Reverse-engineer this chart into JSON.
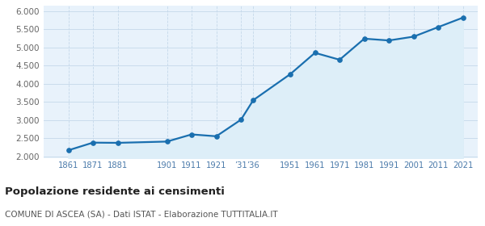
{
  "years": [
    1861,
    1871,
    1881,
    1901,
    1911,
    1921,
    1931,
    1936,
    1951,
    1961,
    1971,
    1981,
    1991,
    2001,
    2011,
    2021
  ],
  "population": [
    2168,
    2379,
    2373,
    2408,
    2605,
    2554,
    3010,
    3549,
    4265,
    4851,
    4661,
    5241,
    5192,
    5297,
    5560,
    5820
  ],
  "line_color": "#1a6faf",
  "fill_color": "#ddeef8",
  "marker_color": "#1a6faf",
  "bg_color": "#e8f2fb",
  "fig_color": "#ffffff",
  "yticks": [
    2000,
    2500,
    3000,
    3500,
    4000,
    4500,
    5000,
    5500,
    6000
  ],
  "ylim_min": 1950,
  "ylim_max": 6150,
  "xlim_min": 1851,
  "xlim_max": 2027,
  "title": "Popolazione residente ai censimenti",
  "subtitle": "COMUNE DI ASCEA (SA) - Dati ISTAT - Elaborazione TUTTITALIA.IT",
  "xtick_positions": [
    1861,
    1871,
    1881,
    1901,
    1911,
    1921,
    1931,
    1936,
    1951,
    1961,
    1971,
    1981,
    1991,
    2001,
    2011,
    2021
  ],
  "xtick_labels": [
    "1861",
    "1871",
    "1881",
    "1901",
    "1911",
    "1921",
    "’31",
    "’36",
    "1951",
    "1961",
    "1971",
    "1981",
    "1991",
    "2001",
    "2011",
    "2021"
  ]
}
